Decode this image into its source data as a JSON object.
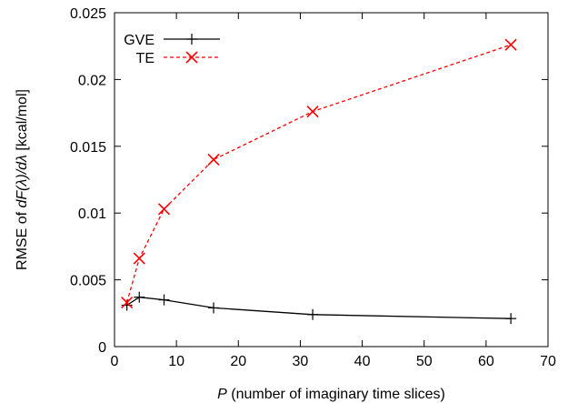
{
  "chart_data": {
    "type": "line",
    "xlabel": {
      "italic": "P",
      "rest": " (number of imaginary time slices)"
    },
    "ylabel": {
      "pre": "RMSE of ",
      "italic": "dF(λ)/dλ",
      "post": " [kcal/mol]"
    },
    "xlim": [
      0,
      70
    ],
    "ylim": [
      0,
      0.025
    ],
    "x_ticks": [
      0,
      10,
      20,
      30,
      40,
      50,
      60,
      70
    ],
    "y_ticks": [
      0,
      0.005,
      0.01,
      0.015,
      0.02,
      0.025
    ],
    "x_tick_labels": [
      "0",
      "10",
      "20",
      "30",
      "40",
      "50",
      "60",
      "70"
    ],
    "y_tick_labels": [
      "0",
      "0.005",
      "0.01",
      "0.015",
      "0.02",
      "0.025"
    ],
    "grid": false,
    "legend_position": "top-left",
    "series": [
      {
        "name": "GVE",
        "color": "#000000",
        "line": "solid",
        "marker": "plus",
        "x": [
          2,
          4,
          8,
          16,
          32,
          64
        ],
        "y": [
          0.0031,
          0.0037,
          0.0035,
          0.0029,
          0.0024,
          0.0021
        ]
      },
      {
        "name": "TE",
        "color": "#ff0000",
        "line": "dashed",
        "marker": "cross",
        "x": [
          2,
          4,
          8,
          16,
          32,
          64
        ],
        "y": [
          0.0033,
          0.0066,
          0.0103,
          0.014,
          0.0176,
          0.0226
        ]
      }
    ]
  }
}
